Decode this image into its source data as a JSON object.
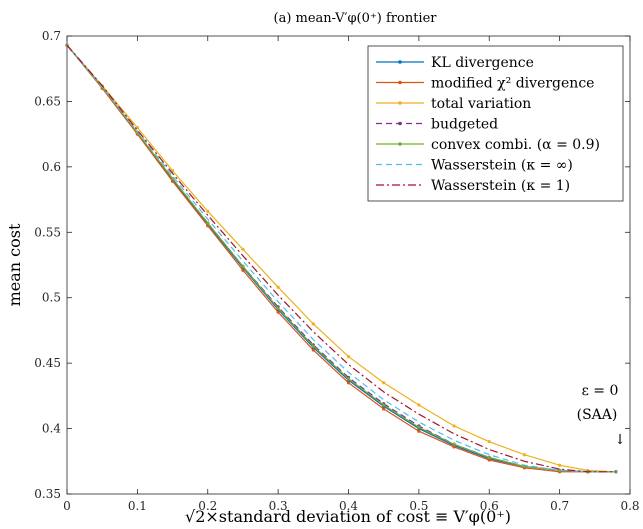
{
  "chart_data": {
    "type": "line",
    "title": "(a) mean-V′φ(0⁺) frontier",
    "xlabel": "√2×standard deviation of cost ≡ V′φ(0⁺)",
    "ylabel": "mean cost",
    "xlim": [
      0,
      0.8
    ],
    "ylim": [
      0.35,
      0.7
    ],
    "xticks": [
      "0",
      "0.1",
      "0.2",
      "0.3",
      "0.4",
      "0.5",
      "0.6",
      "0.7",
      "0.8"
    ],
    "yticks": [
      "0.35",
      "0.4",
      "0.45",
      "0.5",
      "0.55",
      "0.6",
      "0.65",
      "0.7"
    ],
    "grid": false,
    "legend_position": "top-right",
    "annotations": [
      {
        "text_top": "ε = 0",
        "text_bottom": "(SAA)",
        "arrow": "↓",
        "x": 0.78,
        "y": 0.367
      }
    ],
    "series": [
      {
        "name": "KL divergence",
        "color": "#0072BD",
        "dash": "solid",
        "marker": true,
        "x": [
          0.0,
          0.05,
          0.1,
          0.15,
          0.2,
          0.25,
          0.3,
          0.35,
          0.4,
          0.45,
          0.5,
          0.55,
          0.6,
          0.65,
          0.7,
          0.74,
          0.78
        ],
        "y": [
          0.693,
          0.661,
          0.626,
          0.59,
          0.556,
          0.523,
          0.491,
          0.462,
          0.437,
          0.417,
          0.4,
          0.387,
          0.377,
          0.371,
          0.368,
          0.367,
          0.367
        ]
      },
      {
        "name": "modified χ² divergence",
        "color": "#D95319",
        "dash": "solid",
        "marker": true,
        "x": [
          0.0,
          0.05,
          0.1,
          0.15,
          0.2,
          0.25,
          0.3,
          0.35,
          0.4,
          0.45,
          0.5,
          0.55,
          0.6,
          0.65,
          0.7,
          0.74,
          0.78
        ],
        "y": [
          0.693,
          0.66,
          0.625,
          0.589,
          0.555,
          0.521,
          0.489,
          0.46,
          0.435,
          0.415,
          0.398,
          0.386,
          0.376,
          0.37,
          0.367,
          0.367,
          0.367
        ]
      },
      {
        "name": "total variation",
        "color": "#EDB120",
        "dash": "solid",
        "marker": true,
        "x": [
          0.0,
          0.05,
          0.1,
          0.15,
          0.2,
          0.25,
          0.3,
          0.35,
          0.4,
          0.45,
          0.5,
          0.55,
          0.6,
          0.65,
          0.7,
          0.74,
          0.78
        ],
        "y": [
          0.693,
          0.662,
          0.63,
          0.597,
          0.566,
          0.537,
          0.508,
          0.48,
          0.455,
          0.435,
          0.418,
          0.402,
          0.39,
          0.38,
          0.372,
          0.368,
          0.367
        ]
      },
      {
        "name": "budgeted",
        "color": "#7E2F8E",
        "dash": "dashed",
        "marker": true,
        "x": [
          0.0,
          0.05,
          0.1,
          0.15,
          0.2,
          0.25,
          0.3,
          0.35,
          0.4,
          0.45,
          0.5,
          0.55,
          0.6,
          0.65,
          0.7,
          0.74,
          0.78
        ],
        "y": [
          0.693,
          0.661,
          0.626,
          0.591,
          0.557,
          0.524,
          0.493,
          0.464,
          0.439,
          0.419,
          0.402,
          0.388,
          0.378,
          0.371,
          0.368,
          0.367,
          0.367
        ]
      },
      {
        "name": "convex combi. (α = 0.9)",
        "color": "#77AC30",
        "dash": "solid",
        "marker": true,
        "x": [
          0.0,
          0.05,
          0.1,
          0.15,
          0.2,
          0.25,
          0.3,
          0.35,
          0.4,
          0.45,
          0.5,
          0.55,
          0.6,
          0.65,
          0.7,
          0.74,
          0.78
        ],
        "y": [
          0.693,
          0.661,
          0.626,
          0.591,
          0.557,
          0.524,
          0.492,
          0.463,
          0.438,
          0.418,
          0.401,
          0.388,
          0.378,
          0.371,
          0.368,
          0.367,
          0.367
        ]
      },
      {
        "name": "Wasserstein (κ = ∞)",
        "color": "#4DBEEE",
        "dash": "dashed",
        "marker": false,
        "x": [
          0.0,
          0.05,
          0.1,
          0.15,
          0.2,
          0.25,
          0.3,
          0.35,
          0.4,
          0.45,
          0.5,
          0.55,
          0.6,
          0.65,
          0.7,
          0.74,
          0.78
        ],
        "y": [
          0.693,
          0.661,
          0.627,
          0.593,
          0.56,
          0.528,
          0.497,
          0.468,
          0.443,
          0.422,
          0.405,
          0.391,
          0.38,
          0.372,
          0.368,
          0.367,
          0.367
        ]
      },
      {
        "name": "Wasserstein (κ = 1)",
        "color": "#A2142F",
        "dash": "dashdot",
        "marker": false,
        "x": [
          0.0,
          0.05,
          0.1,
          0.15,
          0.2,
          0.25,
          0.3,
          0.35,
          0.4,
          0.45,
          0.5,
          0.55,
          0.6,
          0.65,
          0.7,
          0.74,
          0.78
        ],
        "y": [
          0.693,
          0.662,
          0.628,
          0.595,
          0.563,
          0.532,
          0.502,
          0.474,
          0.449,
          0.428,
          0.411,
          0.396,
          0.384,
          0.375,
          0.369,
          0.367,
          0.367
        ]
      }
    ]
  }
}
